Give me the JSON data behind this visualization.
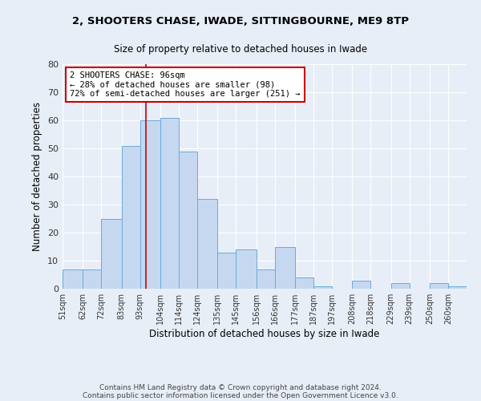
{
  "title1": "2, SHOOTERS CHASE, IWADE, SITTINGBOURNE, ME9 8TP",
  "title2": "Size of property relative to detached houses in Iwade",
  "xlabel": "Distribution of detached houses by size in Iwade",
  "ylabel": "Number of detached properties",
  "bin_labels": [
    "51sqm",
    "62sqm",
    "72sqm",
    "83sqm",
    "93sqm",
    "104sqm",
    "114sqm",
    "124sqm",
    "135sqm",
    "145sqm",
    "156sqm",
    "166sqm",
    "177sqm",
    "187sqm",
    "197sqm",
    "208sqm",
    "218sqm",
    "229sqm",
    "239sqm",
    "250sqm",
    "260sqm"
  ],
  "bin_edges": [
    51,
    62,
    72,
    83,
    93,
    104,
    114,
    124,
    135,
    145,
    156,
    166,
    177,
    187,
    197,
    208,
    218,
    229,
    239,
    250,
    260
  ],
  "bar_heights": [
    7,
    7,
    25,
    51,
    60,
    61,
    49,
    32,
    13,
    14,
    7,
    15,
    4,
    1,
    0,
    3,
    0,
    2,
    0,
    2,
    1
  ],
  "bar_color": "#c5d8f0",
  "bar_edge_color": "#6aabdc",
  "property_line_x": 96,
  "annotation_text": "2 SHOOTERS CHASE: 96sqm\n← 28% of detached houses are smaller (98)\n72% of semi-detached houses are larger (251) →",
  "annotation_box_color": "white",
  "annotation_box_edge_color": "#cc0000",
  "line_color": "#cc0000",
  "ylim": [
    0,
    80
  ],
  "yticks": [
    0,
    10,
    20,
    30,
    40,
    50,
    60,
    70,
    80
  ],
  "footer1": "Contains HM Land Registry data © Crown copyright and database right 2024.",
  "footer2": "Contains public sector information licensed under the Open Government Licence v3.0.",
  "bg_color": "#e8eef8",
  "plot_bg_color": "#e8eef8",
  "grid_color": "#ffffff",
  "tick_color": "#333333"
}
